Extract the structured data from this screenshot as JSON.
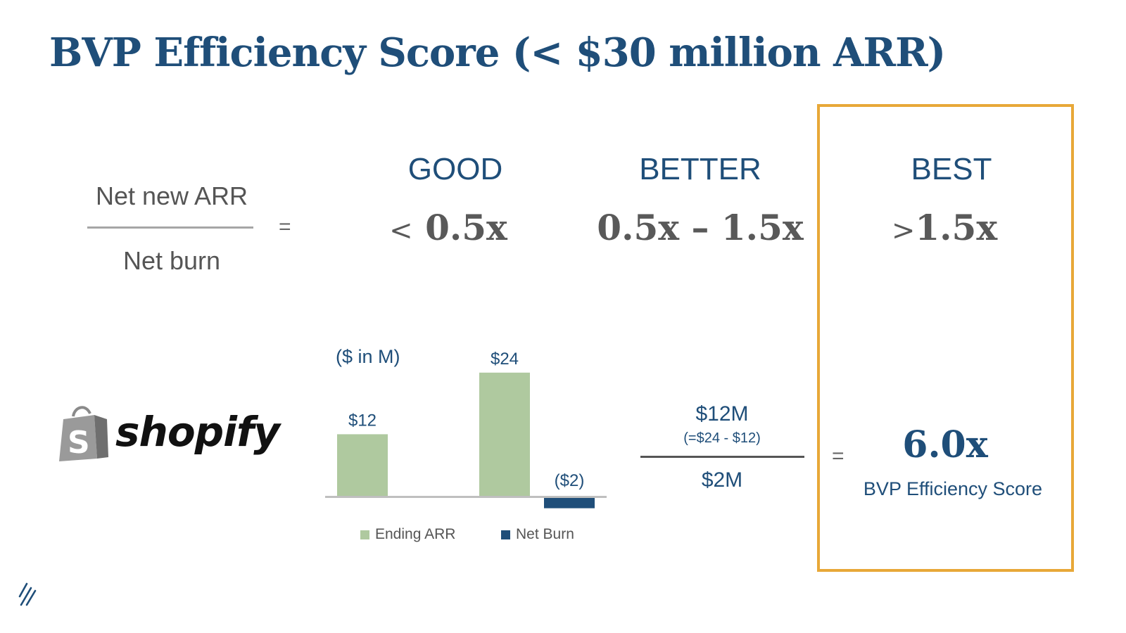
{
  "title": "BVP Efficiency Score (< $30 million ARR)",
  "formula": {
    "numerator": "Net new ARR",
    "denominator": "Net burn",
    "equals": "="
  },
  "tiers": [
    {
      "label": "GOOD",
      "prefix": "<",
      "value": "0.5x"
    },
    {
      "label": "BETTER",
      "value": "0.5x – 1.5x"
    },
    {
      "label": "BEST",
      "prefix": ">",
      "value": "1.5x"
    }
  ],
  "company": {
    "logo_text": "shopify",
    "logo_icon": "shopping-bag-icon"
  },
  "chart_data": {
    "type": "bar",
    "unit_label": "($ in M)",
    "series": [
      {
        "name": "Ending ARR",
        "color": "#afc99f",
        "values": [
          12,
          24
        ]
      },
      {
        "name": "Net Burn",
        "color": "#1f4e79",
        "values": [
          -2
        ]
      }
    ],
    "bars": [
      {
        "series": "Ending ARR",
        "value": 12,
        "label": "$12"
      },
      {
        "series": "Ending ARR",
        "value": 24,
        "label": "$24"
      },
      {
        "series": "Net Burn",
        "value": -2,
        "label": "($2)"
      }
    ],
    "ylim": [
      -2.5,
      30
    ],
    "grid": false,
    "legend_position": "bottom"
  },
  "calculation": {
    "numerator": "$12M",
    "numerator_note": "(=$24 - $12)",
    "denominator": "$2M",
    "equals": "="
  },
  "result": {
    "value": "6.0x",
    "label": "BVP Efficiency Score"
  },
  "colors": {
    "primary": "#1f4e79",
    "accent_border": "#e8a838",
    "arr_bar": "#afc99f",
    "burn_bar": "#1f4e79",
    "gray_text": "#595959"
  }
}
